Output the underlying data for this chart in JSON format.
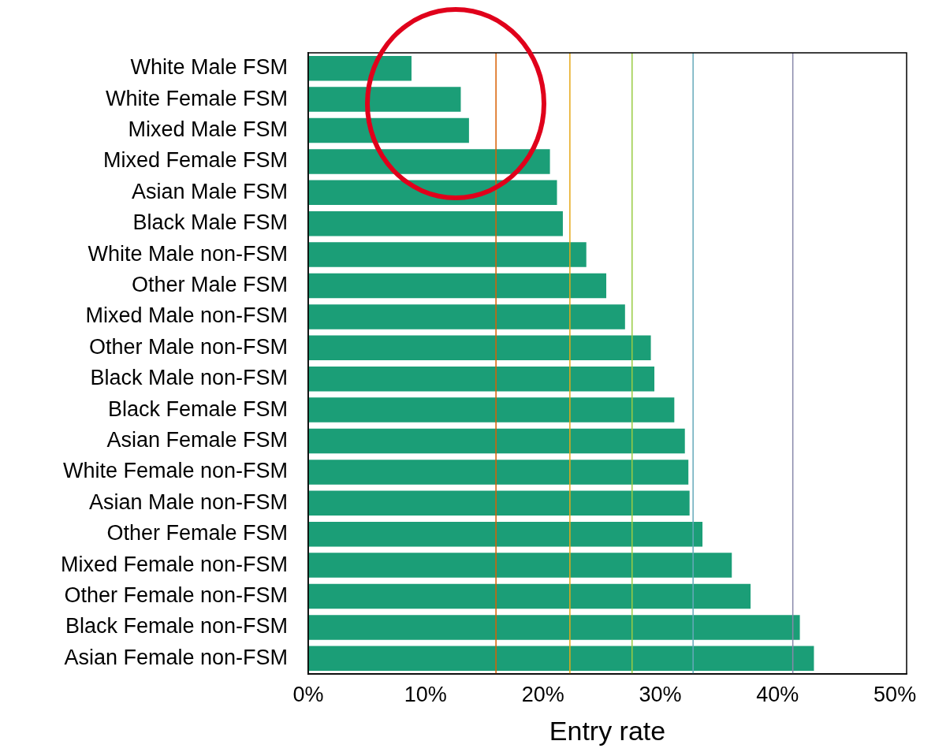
{
  "chart_data": {
    "type": "bar",
    "orientation": "horizontal",
    "xlabel": "Entry rate",
    "categories": [
      "White Male FSM",
      "White Female FSM",
      "Mixed Male FSM",
      "Mixed Female FSM",
      "Asian Male FSM",
      "Black Male FSM",
      "White Male non-FSM",
      "Other Male FSM",
      "Mixed Male non-FSM",
      "Other Male non-FSM",
      "Black Male non-FSM",
      "Black Female FSM",
      "Asian Female FSM",
      "White Female non-FSM",
      "Asian Male non-FSM",
      "Other Female FSM",
      "Mixed Female non-FSM",
      "Other Female non-FSM",
      "Black Female non-FSM",
      "Asian Female non-FSM"
    ],
    "values": [
      8.8,
      13.0,
      13.7,
      20.6,
      21.2,
      21.7,
      23.7,
      25.4,
      27.0,
      29.2,
      29.5,
      31.2,
      32.1,
      32.4,
      32.5,
      33.6,
      36.1,
      37.7,
      41.9,
      43.1
    ],
    "color": "#1b9e77",
    "xlim": [
      0,
      51
    ],
    "xticks": [
      {
        "value": 0,
        "label": "0%"
      },
      {
        "value": 10,
        "label": "10%"
      },
      {
        "value": 20,
        "label": "20%"
      },
      {
        "value": 30,
        "label": "30%"
      },
      {
        "value": 40,
        "label": "40%"
      },
      {
        "value": 50,
        "label": "50%"
      }
    ],
    "ref_lines": [
      {
        "axis": "x",
        "value": 16.0,
        "color": "#d95f02"
      },
      {
        "axis": "x",
        "value": 22.3,
        "color": "#e6a817"
      },
      {
        "axis": "x",
        "value": 27.6,
        "color": "#99cc44"
      },
      {
        "axis": "x",
        "value": 32.8,
        "color": "#66aabb"
      },
      {
        "axis": "x",
        "value": 41.3,
        "color": "#8888aa"
      }
    ]
  }
}
